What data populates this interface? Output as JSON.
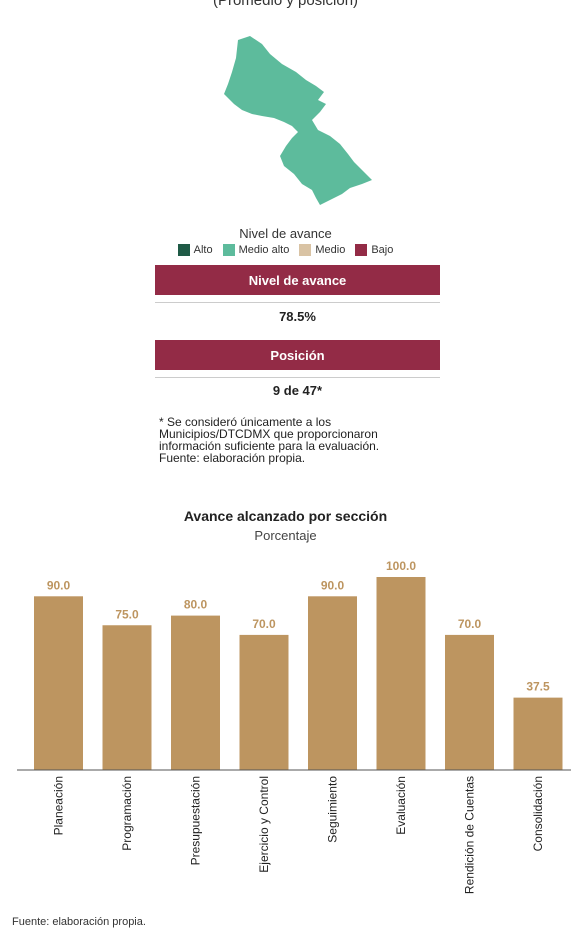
{
  "header": {
    "caption": "(Promedio y posición)"
  },
  "map": {
    "fill_color": "#5dbb9c"
  },
  "legend": {
    "title": "Nivel de avance",
    "items": [
      {
        "label": "Alto",
        "color": "#1f5a46"
      },
      {
        "label": "Medio alto",
        "color": "#5dbb9c"
      },
      {
        "label": "Medio",
        "color": "#d9c3a4"
      },
      {
        "label": "Bajo",
        "color": "#932b46"
      }
    ]
  },
  "summary": {
    "level_label": "Nivel de avance",
    "level_value": "78.5%",
    "position_label": "Posición",
    "position_value": "9 de 47*"
  },
  "notes": {
    "line1": "* Se consideró únicamente a los",
    "line2": "Municipios/DTCDMX que proporcionaron",
    "line3": "información suficiente para la evaluación.",
    "line4": "Fuente: elaboración propia."
  },
  "footer": {
    "source": "Fuente: elaboración propia."
  },
  "chart_data": {
    "type": "bar",
    "title": "Avance alcanzado por sección",
    "subtitle": "Porcentaje",
    "categories": [
      "Planeación",
      "Programación",
      "Presupuestación",
      "Ejercicio y Control",
      "Seguimiento",
      "Evaluación",
      "Rendición de Cuentas",
      "Consolidación"
    ],
    "values": [
      90.0,
      75.0,
      80.0,
      70.0,
      90.0,
      100.0,
      70.0,
      37.5
    ],
    "value_labels": [
      "90.0",
      "75.0",
      "80.0",
      "70.0",
      "90.0",
      "100.0",
      "70.0",
      "37.5"
    ],
    "ylim": [
      0,
      100
    ],
    "bar_color": "#bd9560",
    "label_color": "#bd9560",
    "grid": false,
    "legend": false
  }
}
